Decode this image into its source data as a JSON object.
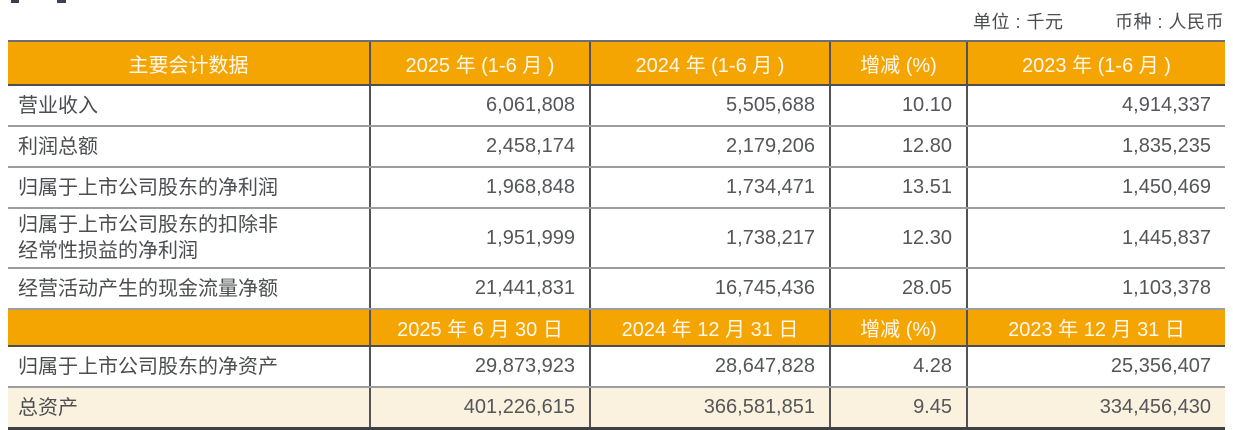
{
  "meta": {
    "unit_label": "单位 : 千元",
    "currency_label": "币种 : 人民币"
  },
  "colors": {
    "accent_orange": "#F5A502",
    "highlight_beige": "#FAF2DE",
    "header_text": "#FDF9EF",
    "body_text": "#54565A"
  },
  "table": {
    "period_header": [
      "主要会计数据",
      "2025 年 (1-6 月 )",
      "2024 年 (1-6 月 )",
      "增减 (%)",
      "2023 年 (1-6 月 )"
    ],
    "period_rows": [
      {
        "label": "营业收入",
        "values": [
          "6,061,808",
          "5,505,688",
          "10.10",
          "4,914,337"
        ]
      },
      {
        "label": "利润总额",
        "values": [
          "2,458,174",
          "2,179,206",
          "12.80",
          "1,835,235"
        ]
      },
      {
        "label": "归属于上市公司股东的净利润",
        "values": [
          "1,968,848",
          "1,734,471",
          "13.51",
          "1,450,469"
        ]
      },
      {
        "label": "归属于上市公司股东的扣除非\n经常性损益的净利润",
        "values": [
          "1,951,999",
          "1,738,217",
          "12.30",
          "1,445,837"
        ]
      },
      {
        "label": "经营活动产生的现金流量净额",
        "values": [
          "21,441,831",
          "16,745,436",
          "28.05",
          "1,103,378"
        ]
      }
    ],
    "balance_header": [
      "",
      "2025 年 6 月 30 日",
      "2024 年 12 月 31 日",
      "增减 (%)",
      "2023 年 12 月 31 日"
    ],
    "balance_rows": [
      {
        "label": "归属于上市公司股东的净资产",
        "values": [
          "29,873,923",
          "28,647,828",
          "4.28",
          "25,356,407"
        ]
      },
      {
        "label": "总资产",
        "values": [
          "401,226,615",
          "366,581,851",
          "9.45",
          "334,456,430"
        ]
      }
    ]
  }
}
